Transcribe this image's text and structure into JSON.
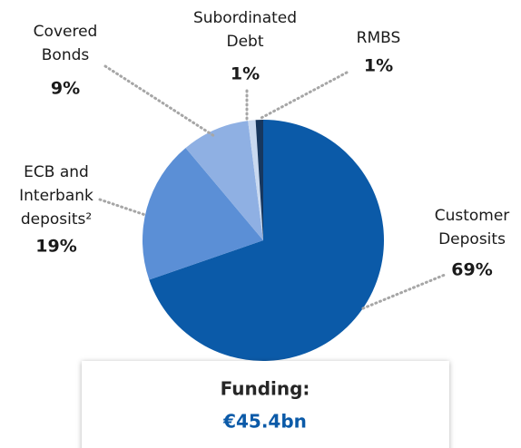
{
  "chart_data": {
    "type": "pie",
    "categories": [
      "Customer\nDeposits",
      "ECB and\nInterbank\ndeposits²",
      "Covered\nBonds",
      "Subordinated\nDebt",
      "RMBS"
    ],
    "values": [
      69,
      19,
      9,
      1,
      1
    ],
    "value_labels": [
      "69%",
      "19%",
      "9%",
      "1%",
      "1%"
    ],
    "colors": [
      "#0b5aa8",
      "#5b8fd6",
      "#8fb0e3",
      "#c9d9f0",
      "#17375e"
    ],
    "annotation": {
      "title": "Funding:",
      "value": "€45.4bn"
    }
  }
}
